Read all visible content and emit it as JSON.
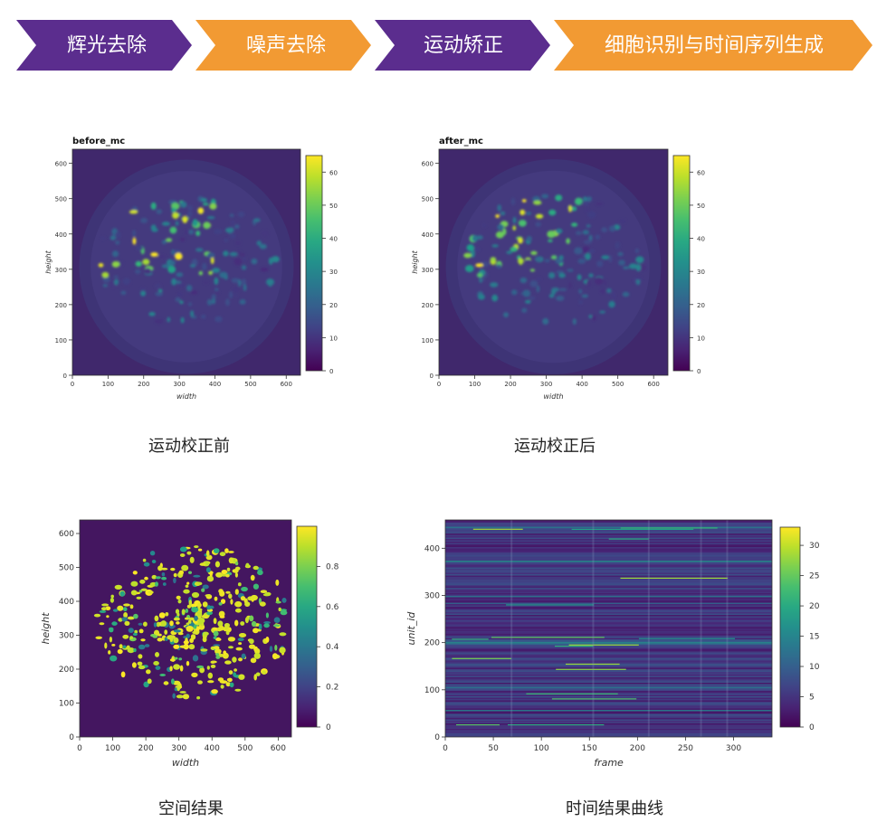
{
  "pipeline": {
    "steps": [
      {
        "label": "辉光去除",
        "color": "#5b2d8e"
      },
      {
        "label": "噪声去除",
        "color": "#f29a33"
      },
      {
        "label": "运动矫正",
        "color": "#5b2d8e"
      },
      {
        "label": "细胞识别与时间序列生成",
        "color": "#f29a33"
      }
    ]
  },
  "captions": {
    "before": "运动校正前",
    "after": "运动校正后",
    "spatial": "空间结果",
    "temporal": "时间结果曲线"
  },
  "colormap": "viridis",
  "chart_data": [
    {
      "type": "heatmap",
      "title": "before_mc",
      "xlabel": "width",
      "ylabel": "height",
      "xlim": [
        0,
        640
      ],
      "ylim": [
        0,
        640
      ],
      "xticks": [
        0,
        100,
        200,
        300,
        400,
        500,
        600
      ],
      "yticks": [
        0,
        100,
        200,
        300,
        400,
        500,
        600
      ],
      "colorbar": {
        "range": [
          0,
          65
        ],
        "ticks": [
          0,
          10,
          20,
          30,
          40,
          50,
          60
        ]
      }
    },
    {
      "type": "heatmap",
      "title": "after_mc",
      "xlabel": "width",
      "ylabel": "height",
      "xlim": [
        0,
        640
      ],
      "ylim": [
        0,
        640
      ],
      "xticks": [
        0,
        100,
        200,
        300,
        400,
        500,
        600
      ],
      "yticks": [
        0,
        100,
        200,
        300,
        400,
        500,
        600
      ],
      "colorbar": {
        "range": [
          0,
          65
        ],
        "ticks": [
          0,
          10,
          20,
          30,
          40,
          50,
          60
        ]
      }
    },
    {
      "type": "heatmap",
      "title": "",
      "xlabel": "width",
      "ylabel": "height",
      "xlim": [
        0,
        640
      ],
      "ylim": [
        0,
        640
      ],
      "xticks": [
        0,
        100,
        200,
        300,
        400,
        500,
        600
      ],
      "yticks": [
        0,
        100,
        200,
        300,
        400,
        500,
        600
      ],
      "colorbar": {
        "range": [
          0,
          1
        ],
        "ticks": [
          0,
          0.2,
          0.4,
          0.6,
          0.8
        ]
      }
    },
    {
      "type": "heatmap",
      "title": "",
      "xlabel": "frame",
      "ylabel": "unit_id",
      "xlim": [
        0,
        340
      ],
      "ylim": [
        0,
        460
      ],
      "xticks": [
        0,
        50,
        100,
        150,
        200,
        250,
        300
      ],
      "yticks": [
        0,
        100,
        200,
        300,
        400
      ],
      "colorbar": {
        "range": [
          0,
          33
        ],
        "ticks": [
          0,
          5,
          10,
          15,
          20,
          25,
          30
        ]
      }
    }
  ]
}
